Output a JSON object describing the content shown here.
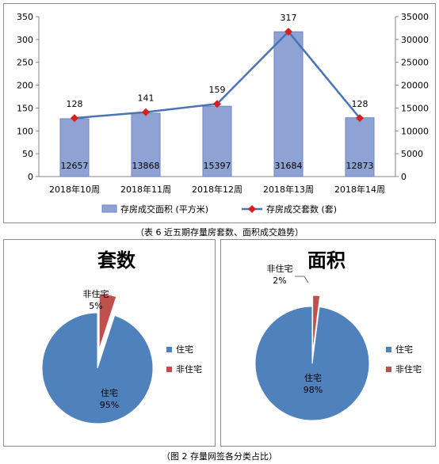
{
  "chart_data": [
    {
      "type": "bar+line",
      "categories": [
        "2018年10周",
        "2018年11周",
        "2018年12周",
        "2018年13周",
        "2018年14周"
      ],
      "series": [
        {
          "name": "存房成交面积 (平方米)",
          "type": "bar",
          "axis": "right",
          "values": [
            12657,
            13868,
            15397,
            31684,
            12873
          ]
        },
        {
          "name": "存房成交套数 (套)",
          "type": "line",
          "axis": "left",
          "values": [
            128,
            141,
            159,
            317,
            128
          ]
        }
      ],
      "left_axis": {
        "ylim": [
          0,
          350
        ],
        "ticks": [
          "0",
          "50",
          "100",
          "150",
          "200",
          "250",
          "300",
          "350"
        ]
      },
      "right_axis": {
        "ylim": [
          0,
          35000
        ],
        "ticks": [
          "0",
          "5000",
          "10000",
          "15000",
          "20000",
          "25000",
          "30000",
          "35000"
        ]
      },
      "legend": "bottom",
      "grid": false,
      "colors": {
        "bar": "#8fa2d4",
        "bar_edge": "#6f86c4",
        "line": "#4a74b8",
        "marker": "#d81e1e"
      }
    },
    {
      "type": "pie",
      "title": "套数",
      "labels": [
        "住宅",
        "非住宅"
      ],
      "values": [
        95,
        5
      ],
      "value_labels": [
        "95%",
        "5%"
      ],
      "legend": "right",
      "colors": [
        "#4f81bd",
        "#c0504d"
      ]
    },
    {
      "type": "pie",
      "title": "面积",
      "labels": [
        "住宅",
        "非住宅"
      ],
      "values": [
        98,
        2
      ],
      "value_labels": [
        "98%",
        "2%"
      ],
      "legend": "right",
      "colors": [
        "#4f81bd",
        "#c0504d"
      ]
    }
  ],
  "captions": {
    "top": "（表 6 近五期存量房套数、面积成交趋势）",
    "bottom": "（图 2 存量网签各分类占比）"
  }
}
